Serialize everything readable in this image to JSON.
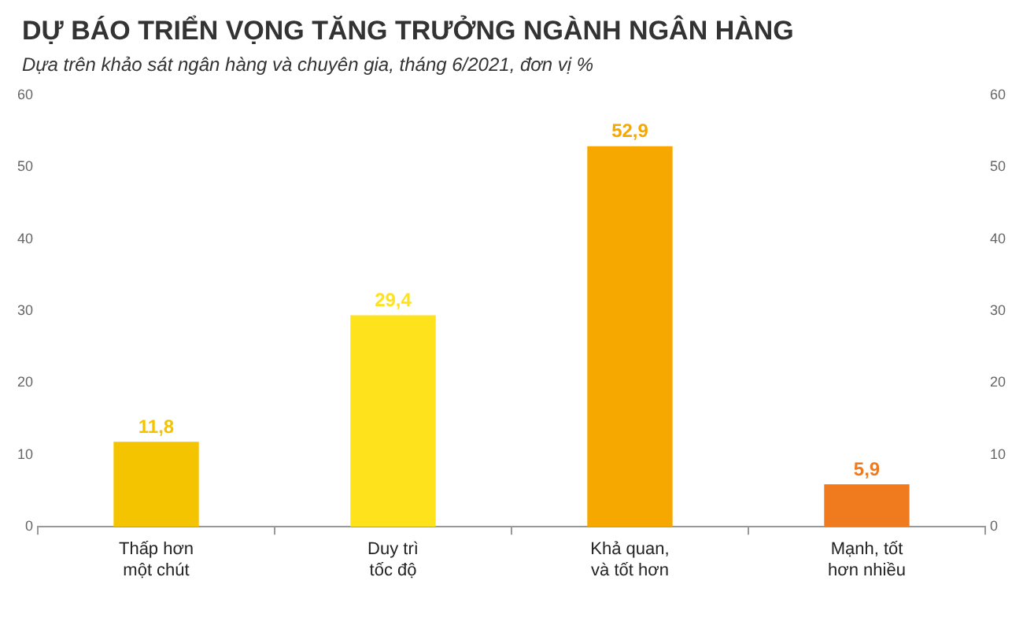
{
  "chart_data": {
    "type": "bar",
    "title": "DỰ BÁO TRIỂN VỌNG TĂNG TRƯỞNG NGÀNH NGÂN HÀNG",
    "subtitle": "Dựa trên khảo sát ngân hàng và chuyên gia, tháng 6/2021, đơn vị %",
    "categories": [
      "Thấp hơn\nmột chút",
      "Duy trì\ntốc độ",
      "Khả quan,\nvà tốt hơn",
      "Mạnh, tốt\nhơn nhiều"
    ],
    "values": [
      11.8,
      29.4,
      52.9,
      5.9
    ],
    "colors": [
      "#f5c400",
      "#fde21c",
      "#f7a800",
      "#f07a1e"
    ],
    "value_labels": [
      "11,8",
      "29,4",
      "52,9",
      "5,9"
    ],
    "ylim": [
      0,
      60
    ],
    "yticks": [
      0,
      10,
      20,
      30,
      40,
      50,
      60
    ],
    "y2lim": [
      0,
      60
    ],
    "y2ticks": [
      0,
      10,
      20,
      30,
      40,
      50,
      60
    ],
    "grid": false,
    "legend": false
  }
}
